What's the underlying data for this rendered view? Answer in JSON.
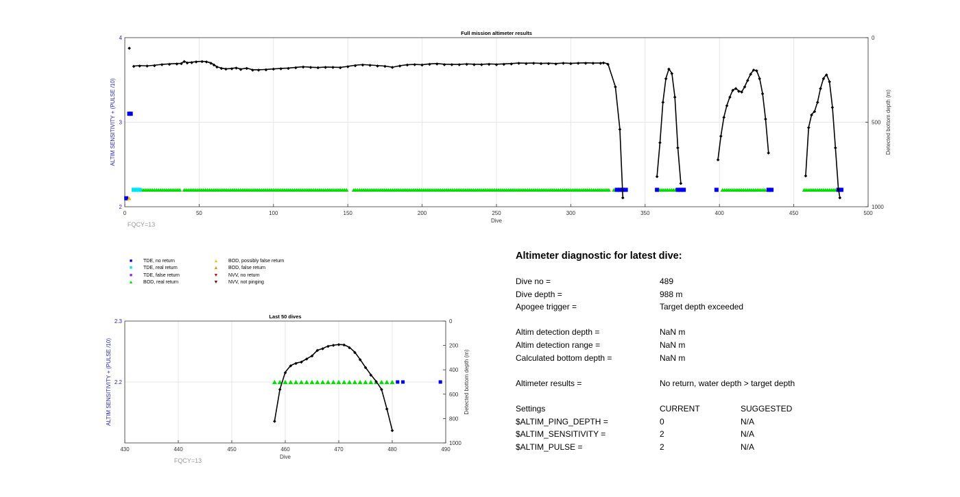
{
  "chart_data": [
    {
      "type": "scatter",
      "title": "Full mission altimeter results",
      "xlabel": "Dive",
      "ylabel_left": "ALTIM SENSITIVITY + (PULSE /10)",
      "ylabel_right": "Detected bottom depth (m)",
      "xlim": [
        0,
        500
      ],
      "ylim_left": [
        2,
        4
      ],
      "ylim_right_reversed": [
        0,
        1000
      ],
      "x_ticks": [
        "0",
        "50",
        "100",
        "150",
        "200",
        "250",
        "300",
        "350",
        "400",
        "450",
        "500"
      ],
      "y_left_ticks": [
        "2",
        "3",
        "4"
      ],
      "y_right_ticks": [
        "0",
        "500",
        "1000"
      ],
      "note": "FQCY=13",
      "grid": true,
      "bottom_depth_series": [
        {
          "x": [
            3
          ],
          "y": [
            60
          ]
        },
        {
          "x": [
            6,
            10,
            15,
            20,
            25,
            30,
            35,
            38,
            40,
            42,
            45,
            48,
            52,
            55,
            58,
            60,
            62,
            65,
            68,
            72,
            75,
            78,
            82,
            86,
            90,
            95,
            100,
            105,
            110,
            115,
            120,
            125,
            130,
            135,
            140,
            145,
            150,
            155,
            160,
            165,
            170,
            175,
            180,
            185,
            190,
            195,
            200,
            205,
            210,
            215,
            220,
            225,
            230,
            235,
            240,
            245,
            250,
            255,
            260,
            265,
            270,
            275,
            280,
            285,
            290,
            295,
            300,
            305,
            310,
            315,
            320,
            322,
            325,
            330,
            333,
            335
          ],
          "y": [
            168,
            165,
            167,
            163,
            158,
            155,
            153,
            152,
            140,
            148,
            145,
            142,
            140,
            142,
            150,
            160,
            172,
            180,
            185,
            182,
            178,
            186,
            180,
            190,
            190,
            188,
            185,
            182,
            180,
            176,
            172,
            175,
            177,
            174,
            175,
            176,
            170,
            163,
            159,
            162,
            165,
            168,
            175,
            166,
            160,
            158,
            160,
            155,
            153,
            157,
            158,
            158,
            155,
            157,
            158,
            155,
            157,
            155,
            153,
            150,
            151,
            150,
            152,
            151,
            153,
            150,
            152,
            150,
            149,
            150,
            150,
            148,
            155,
            290,
            540,
            945
          ]
        },
        {
          "x": [
            358,
            360,
            362,
            364,
            366,
            368,
            370,
            372,
            374
          ],
          "y": [
            820,
            620,
            380,
            240,
            185,
            210,
            350,
            650,
            860
          ]
        },
        {
          "x": [
            399,
            401,
            403,
            405,
            407,
            409,
            411,
            413,
            415,
            417,
            419,
            421,
            423,
            425,
            427,
            429,
            431,
            433
          ],
          "y": [
            720,
            580,
            470,
            400,
            350,
            310,
            300,
            315,
            320,
            290,
            250,
            215,
            190,
            195,
            240,
            330,
            480,
            680
          ]
        },
        {
          "x": [
            458,
            460,
            462,
            464,
            466,
            468,
            470,
            472,
            474,
            476,
            478,
            480,
            481
          ],
          "y": [
            815,
            530,
            455,
            435,
            380,
            300,
            240,
            218,
            260,
            410,
            650,
            895,
            945
          ]
        }
      ],
      "markers": {
        "tde_no_return": [
          [
            1,
            2.1
          ],
          [
            3,
            3.1
          ],
          [
            4,
            3.1
          ],
          [
            331,
            2.2
          ],
          [
            333,
            2.2
          ],
          [
            335,
            2.2
          ],
          [
            337,
            2.2
          ],
          [
            358,
            2.2
          ],
          [
            372,
            2.2
          ],
          [
            374,
            2.2
          ],
          [
            376,
            2.2
          ],
          [
            398,
            2.2
          ],
          [
            433,
            2.2
          ],
          [
            435,
            2.2
          ],
          [
            480,
            2.2
          ],
          [
            482,
            2.2
          ]
        ],
        "tde_real_return": [
          [
            6,
            2.2
          ],
          [
            8,
            2.2
          ],
          [
            10,
            2.2
          ]
        ],
        "bod_false_return": [
          [
            3,
            2.1
          ]
        ],
        "bod_real_return_ranges": [
          [
            11,
            37
          ],
          [
            40,
            150
          ],
          [
            154,
            326
          ],
          [
            329,
            333
          ],
          [
            360,
            372
          ],
          [
            402,
            431
          ],
          [
            457,
            478
          ]
        ]
      }
    },
    {
      "type": "scatter",
      "title": "Last 50 dives",
      "xlabel": "Dive",
      "ylabel_left": "ALTIM SENSITIVITY + (PULSE /10)",
      "ylabel_right": "Detected bottom depth (m)",
      "xlim": [
        430,
        490
      ],
      "ylim_left": [
        2.1,
        2.3
      ],
      "ylim_right_reversed": [
        0,
        1000
      ],
      "x_ticks": [
        "430",
        "440",
        "450",
        "460",
        "470",
        "480",
        "490"
      ],
      "y_left_ticks": [
        "2.2",
        "2.3"
      ],
      "y_right_ticks": [
        "0",
        "200",
        "400",
        "600",
        "800",
        "1000"
      ],
      "note": "FQCY=13",
      "grid": true,
      "bottom_depth_series": [
        {
          "x": [
            458,
            459,
            460,
            461,
            462,
            463,
            464,
            465,
            466,
            467,
            468,
            469,
            470,
            471,
            472,
            473,
            474,
            475,
            476,
            477,
            478,
            479,
            480
          ],
          "y": [
            820,
            560,
            420,
            365,
            345,
            335,
            310,
            285,
            240,
            225,
            205,
            198,
            192,
            195,
            215,
            255,
            315,
            380,
            440,
            495,
            560,
            720,
            895
          ]
        }
      ],
      "markers": {
        "bod_real_return_x": [
          458,
          459,
          460,
          461,
          462,
          463,
          464,
          465,
          466,
          467,
          468,
          469,
          470,
          471,
          472,
          473,
          474,
          475,
          476,
          477,
          478,
          479,
          480
        ],
        "tde_no_return_x": [
          481,
          482,
          489
        ],
        "marker_y": 2.2
      }
    }
  ],
  "legend": {
    "items": [
      {
        "label": "TDE, no return",
        "symbol": "■",
        "color": "#0000ee"
      },
      {
        "label": "TDE, real return",
        "symbol": "■",
        "color": "#00e5ee"
      },
      {
        "label": "TDE, false return",
        "symbol": "■",
        "color": "#8a2be2"
      },
      {
        "label": "BOD, real return",
        "symbol": "▲",
        "color": "#00dd00"
      },
      {
        "label": "BOD, possibly false return",
        "symbol": "▲",
        "color": "#f5c400"
      },
      {
        "label": "BOD, false return",
        "symbol": "▲",
        "color": "#f08c00"
      },
      {
        "label": "NVV, no return",
        "symbol": "▼",
        "color": "#dd0000"
      },
      {
        "label": "NVV, not pinging",
        "symbol": "▼",
        "color": "#8b0000"
      }
    ]
  },
  "diagnostic": {
    "title": "Altimeter diagnostic for latest dive:",
    "dive_no_label": "Dive no =",
    "dive_no_value": "489",
    "dive_depth_label": "Dive depth =",
    "dive_depth_value": "988 m",
    "apogee_label": "Apogee trigger =",
    "apogee_value": "Target depth exceeded",
    "altim_depth_label": "Altim detection depth =",
    "altim_depth_value": "NaN m",
    "altim_range_label": "Altim detection range =",
    "altim_range_value": "NaN m",
    "calc_bottom_label": "Calculated bottom depth =",
    "calc_bottom_value": "NaN m",
    "results_label": "Altimeter results =",
    "results_value": "No return, water depth > target depth",
    "settings_label": "Settings",
    "current_label": "CURRENT",
    "suggested_label": "SUGGESTED",
    "settings": [
      {
        "name": "$ALTIM_PING_DEPTH =",
        "current": "0",
        "suggested": "N/A"
      },
      {
        "name": "$ALTIM_SENSITIVITY =",
        "current": "2",
        "suggested": "N/A"
      },
      {
        "name": "$ALTIM_PULSE =",
        "current": "2",
        "suggested": "N/A"
      }
    ]
  }
}
